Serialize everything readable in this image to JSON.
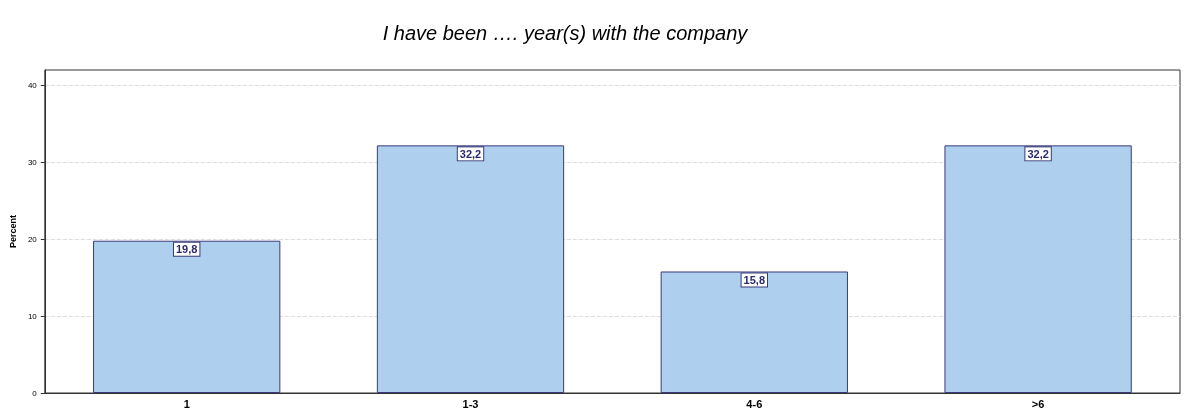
{
  "chart_data": {
    "type": "bar",
    "title": "I have been …. year(s) with the company",
    "ylabel": "Percent",
    "categories": [
      "1",
      "1-3",
      "4-6",
      ">6"
    ],
    "values": [
      19.8,
      32.2,
      15.8,
      32.2
    ],
    "value_labels": [
      "19,8",
      "32,2",
      "15,8",
      "32,2"
    ],
    "color": "#aecfee",
    "ylim": [
      0,
      42
    ],
    "yticks": [
      0,
      10,
      20,
      30,
      40
    ],
    "grid": "y"
  }
}
